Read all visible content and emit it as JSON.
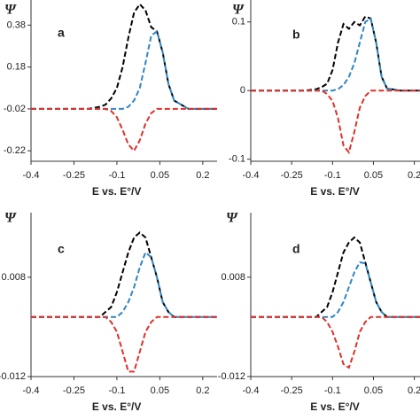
{
  "chart_data": [
    {
      "type": "line",
      "title": "a",
      "ylabel": "Ψ",
      "xlabel": "E vs. E°/V",
      "x": [
        -0.4,
        -0.3,
        -0.2,
        -0.16,
        -0.14,
        -0.12,
        -0.1,
        -0.08,
        -0.06,
        -0.04,
        -0.02,
        0,
        0.02,
        0.04,
        0.06,
        0.08,
        0.1,
        0.15,
        0.25
      ],
      "xlim": [
        -0.4,
        0.25
      ],
      "ylim": [
        -0.27,
        0.5
      ],
      "xticks": [
        -0.4,
        -0.25,
        -0.1,
        0.05,
        0.2
      ],
      "yticks": [
        0.38,
        0.18,
        -0.02,
        -0.22
      ],
      "series": [
        {
          "color": "#000000",
          "values": [
            -0.02,
            -0.02,
            -0.02,
            -0.01,
            0,
            0.03,
            0.08,
            0.18,
            0.32,
            0.44,
            0.48,
            0.45,
            0.37,
            0.35,
            0.25,
            0.1,
            0.02,
            -0.02,
            -0.02
          ]
        },
        {
          "color": "#2f86c4",
          "values": [
            -0.02,
            -0.02,
            -0.02,
            -0.02,
            -0.02,
            -0.02,
            -0.02,
            -0.02,
            -0.01,
            0.02,
            0.08,
            0.2,
            0.33,
            0.35,
            0.25,
            0.1,
            0.02,
            -0.02,
            -0.02
          ]
        },
        {
          "color": "#e0302a",
          "values": [
            -0.02,
            -0.02,
            -0.02,
            -0.02,
            -0.02,
            -0.03,
            -0.06,
            -0.12,
            -0.19,
            -0.22,
            -0.17,
            -0.09,
            -0.04,
            -0.02,
            -0.02,
            -0.02,
            -0.02,
            -0.02,
            -0.02
          ]
        }
      ]
    },
    {
      "type": "line",
      "title": "b",
      "ylabel": "Ψ",
      "xlabel": "E vs. E°/V",
      "x": [
        -0.4,
        -0.3,
        -0.2,
        -0.16,
        -0.14,
        -0.12,
        -0.1,
        -0.08,
        -0.06,
        -0.04,
        -0.02,
        0,
        0.02,
        0.04,
        0.06,
        0.08,
        0.1,
        0.15,
        0.25
      ],
      "xlim": [
        -0.4,
        0.25
      ],
      "ylim": [
        -0.103,
        0.132
      ],
      "xticks": [
        -0.4,
        -0.25,
        -0.1,
        0.05,
        0.2
      ],
      "yticks": [
        0.1,
        0,
        -0.1
      ],
      "series": [
        {
          "color": "#000000",
          "values": [
            0,
            0,
            0,
            0.002,
            0.005,
            0.01,
            0.03,
            0.07,
            0.097,
            0.09,
            0.1,
            0.095,
            0.108,
            0.105,
            0.07,
            0.02,
            0.003,
            0,
            0
          ]
        },
        {
          "color": "#2f86c4",
          "values": [
            0,
            0,
            0,
            0,
            0,
            0,
            0,
            0.002,
            0.008,
            0.02,
            0.04,
            0.07,
            0.1,
            0.105,
            0.07,
            0.02,
            0.003,
            0,
            0
          ]
        },
        {
          "color": "#e0302a",
          "values": [
            0,
            0,
            0,
            0,
            0,
            -0.005,
            -0.015,
            -0.04,
            -0.08,
            -0.09,
            -0.06,
            -0.025,
            -0.008,
            0,
            0,
            0,
            0,
            0,
            0
          ]
        }
      ]
    },
    {
      "type": "line",
      "title": "c",
      "ylabel": "Ψ",
      "xlabel": "E vs. E°/V",
      "x": [
        -0.4,
        -0.3,
        -0.2,
        -0.16,
        -0.14,
        -0.12,
        -0.1,
        -0.08,
        -0.06,
        -0.04,
        -0.02,
        0,
        0.02,
        0.04,
        0.06,
        0.08,
        0.1,
        0.15,
        0.25
      ],
      "xlim": [
        -0.4,
        0.25
      ],
      "ylim": [
        -0.012,
        0.021
      ],
      "xticks": [
        -0.4,
        -0.25,
        -0.1,
        0.05,
        0.2
      ],
      "yticks": [
        0.008,
        -0.012
      ],
      "series": [
        {
          "color": "#000000",
          "values": [
            0,
            0,
            0,
            0,
            0.001,
            0.002,
            0.005,
            0.009,
            0.013,
            0.016,
            0.017,
            0.016,
            0.012,
            0.008,
            0.003,
            0.001,
            0,
            0,
            0
          ]
        },
        {
          "color": "#2f86c4",
          "values": [
            0,
            0,
            0,
            0,
            0,
            0,
            0,
            0.001,
            0.003,
            0.006,
            0.01,
            0.013,
            0.012,
            0.008,
            0.003,
            0.001,
            0,
            0,
            0
          ]
        },
        {
          "color": "#e0302a",
          "values": [
            0,
            0,
            0,
            0,
            0,
            -0.001,
            -0.003,
            -0.007,
            -0.011,
            -0.011,
            -0.007,
            -0.003,
            -0.001,
            0,
            0,
            0,
            0,
            0,
            0
          ]
        }
      ]
    },
    {
      "type": "line",
      "title": "d",
      "ylabel": "Ψ",
      "xlabel": "E vs. E°/V",
      "x": [
        -0.4,
        -0.3,
        -0.2,
        -0.16,
        -0.14,
        -0.12,
        -0.1,
        -0.08,
        -0.06,
        -0.04,
        -0.02,
        0,
        0.02,
        0.04,
        0.06,
        0.08,
        0.1,
        0.15,
        0.25
      ],
      "xlim": [
        -0.4,
        0.25
      ],
      "ylim": [
        -0.012,
        0.021
      ],
      "xticks": [
        -0.4,
        -0.25,
        -0.1,
        0.05,
        0.2
      ],
      "yticks": [
        0.008,
        -0.012
      ],
      "series": [
        {
          "color": "#000000",
          "values": [
            0,
            0,
            0,
            0,
            0.001,
            0.002,
            0.005,
            0.009,
            0.013,
            0.015,
            0.016,
            0.015,
            0.011,
            0.007,
            0.003,
            0.001,
            0,
            0,
            0
          ]
        },
        {
          "color": "#2f86c4",
          "values": [
            0,
            0,
            0,
            0,
            0,
            0,
            0,
            0.001,
            0.003,
            0.006,
            0.009,
            0.011,
            0.0108,
            0.007,
            0.003,
            0.001,
            0,
            0,
            0
          ]
        },
        {
          "color": "#e0302a",
          "values": [
            0,
            0,
            0,
            0,
            0,
            -0.001,
            -0.003,
            -0.006,
            -0.0095,
            -0.0102,
            -0.007,
            -0.003,
            -0.001,
            0,
            0,
            0,
            0,
            0,
            0
          ]
        }
      ]
    }
  ]
}
